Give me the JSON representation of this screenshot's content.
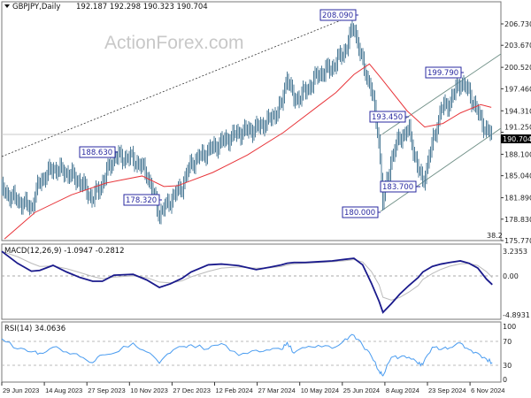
{
  "header": {
    "symbol": "GBPJPY,Daily",
    "ohlc": "192.187 192.298 190.323 190.704",
    "watermark": "ActionForex.com"
  },
  "colors": {
    "bars": "#4f7d98",
    "ma": "#e8353a",
    "macd": "#1a1a8c",
    "signal": "#b8b8b8",
    "rsi": "#4a9cf0",
    "label": "#2a2aa0"
  },
  "chart_data": [
    {
      "type": "bar",
      "title": "GBPJPY,Daily",
      "x_ticks": [
        "29 Jun 2023",
        "14 Aug 2023",
        "27 Sep 2023",
        "10 Nov 2023",
        "27 Dec 2023",
        "12 Feb 2024",
        "27 Mar 2024",
        "10 May 2024",
        "25 Jun 2024",
        "8 Aug 2024",
        "23 Sep 2024",
        "6 Nov 2024"
      ],
      "y_ticks": [
        "206.730",
        "203.670",
        "200.520",
        "197.460",
        "194.310",
        "191.250",
        "188.100",
        "185.040",
        "181.890",
        "178.830",
        "175.770"
      ],
      "ylim": [
        175.77,
        206.73
      ],
      "last_price": "190.704",
      "fib_label": "38.2",
      "close_series": {
        "x": [
          "2023-06-29",
          "2023-07-16",
          "2023-07-31",
          "2023-08-09",
          "2023-08-23",
          "2023-09-06",
          "2023-09-20",
          "2023-10-03",
          "2023-10-13",
          "2023-10-25",
          "2023-11-14",
          "2023-11-29",
          "2023-12-13",
          "2023-12-25",
          "2024-01-07",
          "2024-01-17",
          "2024-02-05",
          "2024-02-19",
          "2024-03-08",
          "2024-03-26",
          "2024-04-09",
          "2024-04-21",
          "2024-04-27",
          "2024-05-04",
          "2024-05-16",
          "2024-05-30",
          "2024-06-14",
          "2024-06-28",
          "2024-07-07",
          "2024-07-16",
          "2024-07-25",
          "2024-08-02",
          "2024-08-06",
          "2024-08-15",
          "2024-08-24",
          "2024-09-03",
          "2024-09-13",
          "2024-09-18",
          "2024-09-28",
          "2024-10-07",
          "2024-10-16",
          "2024-10-27",
          "2024-11-05",
          "2024-11-14",
          "2024-11-23",
          "2024-11-29"
        ],
        "values": [
          183.0,
          181.5,
          180.5,
          184.2,
          186.1,
          185.5,
          184.2,
          181.7,
          184.0,
          187.8,
          187.5,
          185.5,
          179.5,
          181.5,
          183.5,
          186.8,
          188.6,
          189.8,
          191.2,
          191.8,
          193.0,
          195.0,
          199.4,
          195.8,
          197.0,
          199.5,
          200.5,
          203.0,
          206.5,
          201.0,
          197.5,
          190.0,
          181.0,
          187.5,
          190.5,
          191.5,
          186.0,
          184.0,
          189.5,
          194.5,
          195.5,
          198.5,
          197.0,
          194.0,
          191.5,
          190.7
        ]
      },
      "moving_average": {
        "x": [
          "2023-07-02",
          "2023-08-04",
          "2023-09-11",
          "2023-10-17",
          "2023-11-24",
          "2023-12-18",
          "2024-01-02",
          "2024-02-10",
          "2024-03-17",
          "2024-04-23",
          "2024-05-30",
          "2024-06-18",
          "2024-07-07",
          "2024-07-23",
          "2024-08-04",
          "2024-09-01",
          "2024-09-20",
          "2024-10-09",
          "2024-10-27",
          "2024-11-17",
          "2024-11-28"
        ],
        "values": [
          176.0,
          179.8,
          182.3,
          184.0,
          185.0,
          183.5,
          183.6,
          185.5,
          188.0,
          191.2,
          195.0,
          196.9,
          199.5,
          201.0,
          199.0,
          194.3,
          192.0,
          192.5,
          194.0,
          195.2,
          194.8
        ]
      },
      "annotations": [
        {
          "text": "208.090",
          "price": 208.09
        },
        {
          "text": "199.790",
          "price": 199.79
        },
        {
          "text": "193.450",
          "price": 193.45
        },
        {
          "text": "188.630",
          "price": 188.63
        },
        {
          "text": "183.700",
          "price": 183.7
        },
        {
          "text": "180.000",
          "price": 180.0
        },
        {
          "text": "178.320",
          "price": 178.32
        }
      ]
    },
    {
      "type": "line",
      "title": "MACD(12,26,9) -1.0947 -0.2812",
      "y_ticks": [
        "3.2353",
        "0.00",
        "-4.8931"
      ],
      "ylim": [
        -4.8931,
        3.2353
      ],
      "macd": [
        3.1,
        1.6,
        0.6,
        0.7,
        1.34,
        0.5,
        -0.2,
        -0.67,
        -0.67,
        0.1,
        0.2,
        -0.5,
        -1.45,
        -1.0,
        -0.3,
        0.5,
        1.4,
        1.5,
        1.3,
        0.8,
        1.1,
        1.4,
        1.6,
        1.7,
        1.7,
        1.79,
        1.9,
        2.1,
        2.23,
        1.4,
        -0.9,
        -3.2,
        -4.6,
        -3.5,
        -2.3,
        -1.2,
        -0.2,
        0.5,
        1.2,
        1.5,
        1.7,
        1.9,
        1.6,
        1.0,
        -0.4,
        -1.0947
      ]
    },
    {
      "type": "line",
      "title": "RSI(14) 34.0636",
      "y_ticks": [
        "100",
        "70",
        "30",
        "0"
      ],
      "ylim": [
        0,
        100
      ],
      "levels": [
        70,
        30
      ],
      "rsi": [
        74,
        57,
        52,
        50,
        60,
        52,
        44,
        34,
        47,
        50,
        67,
        52,
        33,
        50,
        61,
        64,
        57,
        66,
        46,
        55,
        55,
        56,
        68,
        50,
        59,
        63,
        58,
        74,
        80,
        63,
        45,
        20,
        12,
        43,
        43,
        43,
        32,
        31,
        60,
        56,
        59,
        67,
        56,
        50,
        40,
        34.06
      ]
    }
  ]
}
